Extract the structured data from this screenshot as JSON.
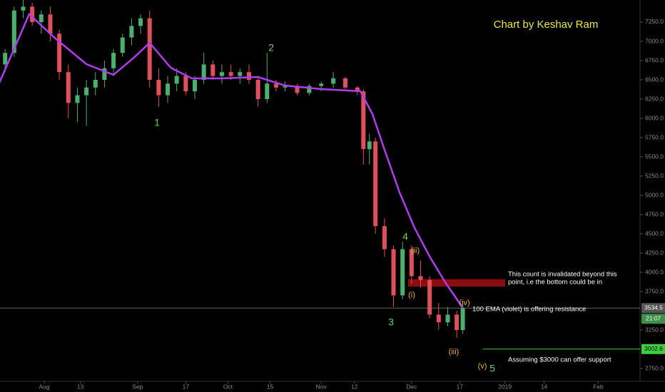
{
  "chart_data": {
    "type": "candlestick",
    "title": "Chart by Keshav Ram",
    "up_color": "#4caf6e",
    "down_color": "#e0505a",
    "x": [
      -13,
      -10,
      -7,
      -4,
      -1,
      2,
      5,
      8,
      11,
      14,
      17,
      20,
      23,
      26,
      29,
      32,
      35,
      38,
      41,
      44,
      47,
      50,
      53,
      56,
      59,
      62,
      65,
      68,
      71,
      74,
      77,
      80,
      84,
      88,
      92,
      96,
      100,
      104,
      106,
      108,
      110,
      113,
      116,
      119,
      122,
      125,
      128,
      131,
      134,
      137,
      139
    ],
    "open": [
      6700,
      6850,
      7400,
      7450,
      7250,
      7350,
      7100,
      6600,
      6200,
      6300,
      6400,
      6500,
      6650,
      6850,
      7050,
      7200,
      7300,
      6500,
      6300,
      6450,
      6550,
      6350,
      6500,
      6700,
      6550,
      6600,
      6550,
      6600,
      6500,
      6250,
      6450,
      6400,
      6420,
      6330,
      6420,
      6450,
      6520,
      6400,
      6350,
      5600,
      5700,
      4600,
      4300,
      3700,
      4300,
      3950,
      3900,
      3450,
      3350,
      3450,
      3250
    ],
    "high": [
      6900,
      7450,
      7550,
      7500,
      7400,
      7450,
      7150,
      6700,
      6400,
      6500,
      6600,
      6750,
      6900,
      7100,
      7300,
      7350,
      7400,
      6650,
      6550,
      6650,
      6600,
      6550,
      6850,
      6750,
      6700,
      6700,
      6650,
      6700,
      6550,
      6850,
      6500,
      6480,
      6450,
      6450,
      6480,
      6600,
      6540,
      6420,
      6380,
      5800,
      5750,
      4700,
      4350,
      4400,
      4350,
      4150,
      3950,
      3600,
      3550,
      3500,
      3600
    ],
    "low": [
      6600,
      6800,
      7300,
      7200,
      7100,
      7000,
      6500,
      6000,
      5950,
      5900,
      6300,
      6400,
      6550,
      6800,
      6950,
      7100,
      6400,
      6150,
      6200,
      6350,
      6300,
      6250,
      6450,
      6500,
      6450,
      6500,
      6450,
      6450,
      6150,
      6200,
      6350,
      6350,
      6300,
      6300,
      6350,
      6400,
      6380,
      6300,
      5400,
      5400,
      4500,
      4200,
      3550,
      3650,
      3850,
      3800,
      3400,
      3250,
      3300,
      3150,
      3200
    ],
    "close": [
      6850,
      7400,
      7450,
      7250,
      7350,
      7100,
      6600,
      6200,
      6300,
      6400,
      6500,
      6650,
      6850,
      7050,
      7200,
      7300,
      6500,
      6300,
      6450,
      6550,
      6350,
      6500,
      6700,
      6550,
      6600,
      6550,
      6600,
      6500,
      6250,
      6450,
      6400,
      6420,
      6330,
      6420,
      6450,
      6520,
      6400,
      6350,
      5600,
      5700,
      4600,
      4300,
      3700,
      4300,
      3950,
      3900,
      3450,
      3350,
      3450,
      3250,
      3534.5
    ],
    "ema": {
      "color": "#b03cf0",
      "x": [
        -15,
        -5,
        4,
        14,
        23,
        30,
        35,
        42,
        49,
        59,
        71,
        80,
        92,
        105,
        109,
        113,
        118,
        123,
        128,
        133,
        139
      ],
      "values": [
        6454,
        7352,
        7028,
        6704,
        6565,
        6796,
        6981,
        6657,
        6519,
        6519,
        6537,
        6426,
        6380,
        6352,
        6056,
        5593,
        5037,
        4574,
        4204,
        3880,
        3537
      ]
    },
    "xlim": [
      -14.7,
      197.4
    ],
    "xticks": [
      {
        "value": 0,
        "label": "Aug"
      },
      {
        "value": 12,
        "label": "13"
      },
      {
        "value": 31,
        "label": "Sep"
      },
      {
        "value": 47,
        "label": "17"
      },
      {
        "value": 61,
        "label": "Oct"
      },
      {
        "value": 75,
        "label": "15"
      },
      {
        "value": 92,
        "label": "Nov"
      },
      {
        "value": 103,
        "label": "12"
      },
      {
        "value": 122,
        "label": "Dec"
      },
      {
        "value": 138,
        "label": "17"
      },
      {
        "value": 153,
        "label": "2019"
      },
      {
        "value": 166,
        "label": "14"
      },
      {
        "value": 184,
        "label": "Feb"
      }
    ],
    "ylim": [
      2630,
      7537
    ],
    "yticks": [
      {
        "value": 2750,
        "label": "2750.0"
      },
      {
        "value": 3250,
        "label": "3250.0"
      },
      {
        "value": 3750,
        "label": "3750.0"
      },
      {
        "value": 4000,
        "label": "4000.0"
      },
      {
        "value": 4250,
        "label": "4250.0"
      },
      {
        "value": 4500,
        "label": "4500.0"
      },
      {
        "value": 4750,
        "label": "4750.0"
      },
      {
        "value": 5000,
        "label": "5000.0"
      },
      {
        "value": 5250,
        "label": "5250.0"
      },
      {
        "value": 5500,
        "label": "5500.0"
      },
      {
        "value": 5750,
        "label": "5750.0"
      },
      {
        "value": 6000,
        "label": "6000.0"
      },
      {
        "value": 6250,
        "label": "6250.0"
      },
      {
        "value": 6500,
        "label": "6500.0"
      },
      {
        "value": 6750,
        "label": "6750.0"
      },
      {
        "value": 7000,
        "label": "7000.0"
      },
      {
        "value": 7250,
        "label": "7250.0"
      }
    ],
    "last_price": 3534.5,
    "countdown": "21:07",
    "support": 3002.6,
    "invalidation_zone": [
      3815,
      3910
    ],
    "wave_labels": [
      "1",
      "2",
      "3",
      "4",
      "5"
    ],
    "subwave_labels": [
      "(i)",
      "(ii)",
      "(iii)",
      "(iv)",
      "(v)"
    ],
    "notes": [
      "This count is invalidated beyond this",
      "point, i.e the bottom could be in",
      "100 EMA (violet) is offering resistance",
      "Assuming $3000 can offer support"
    ]
  }
}
